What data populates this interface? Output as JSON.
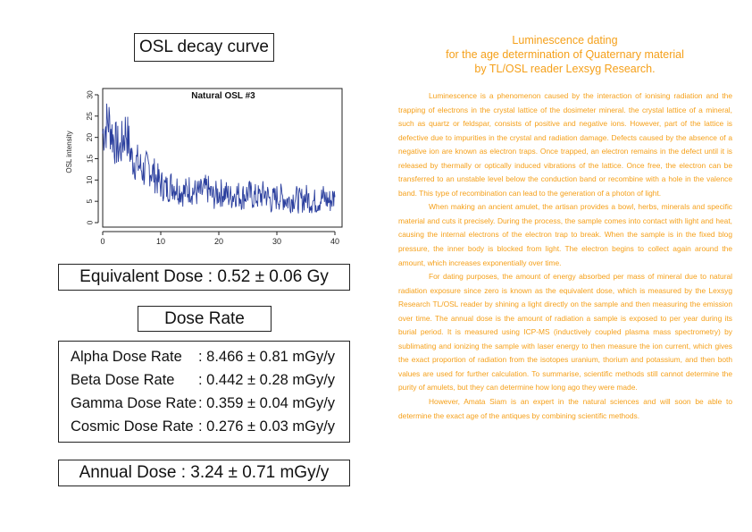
{
  "left": {
    "chart_title_box": "OSL decay curve",
    "equivalent_dose": "Equivalent Dose : 0.52 ± 0.06 Gy",
    "dose_rate_title": "Dose Rate",
    "dose_rates": [
      {
        "label": "Alpha Dose Rate",
        "value": ": 8.466 ± 0.81 mGy/y"
      },
      {
        "label": "Beta Dose Rate",
        "value": ": 0.442 ± 0.28 mGy/y"
      },
      {
        "label": "Gamma Dose Rate",
        "value": ": 0.359 ± 0.04 mGy/y"
      },
      {
        "label": "Cosmic Dose Rate",
        "value": ": 0.276 ± 0.03 mGy/y"
      }
    ],
    "annual_dose": "Annual Dose : 3.24 ± 0.71 mGy/y"
  },
  "right": {
    "heading_lines": [
      "Luminescence dating",
      "for the age determination of Quaternary material",
      "by TL/OSL reader Lexsyg Research."
    ],
    "paragraphs": [
      "Luminescence is a phenomenon caused by the interaction of ionising radiation and the trapping of electrons in the crystal lattice of the dosimeter mineral. the crystal lattice of a mineral, such as quartz or feldspar, consists of positive and negative ions. However, part of the lattice is defective due to impurities in the crystal and radiation damage. Defects caused by the absence of a negative ion are known as electron traps. Once trapped, an electron remains in the defect until it is released by thermally or optically induced vibrations of the lattice. Once free, the electron can be transferred to an unstable level below the conduction band or recombine with a hole in the valence band. This type of recombination can lead to the generation of a photon of light.",
      "When making an ancient amulet, the artisan provides a bowl, herbs, minerals and specific material and cuts it precisely. During the process, the sample comes into contact with light and heat, causing the internal electrons of the electron trap to break. When the sample is in the fixed blog pressure, the inner body is blocked from light. The electron begins to collect again around the amount, which increases exponentially over time.",
      "For dating purposes, the amount of energy absorbed per mass of mineral due to natural radiation exposure since zero is known as the equivalent dose, which is measured by the Lexsyg Research TL/OSL reader by shining a light directly on the sample and then measuring the emission over time. The annual dose is the amount of radiation a sample is exposed to per year during its burial period. It is measured using ICP-MS (inductively coupled plasma mass spectrometry) by sublimating and ionizing the sample with laser energy to then measure the ion current, which gives the exact proportion of radiation from the isotopes uranium, thorium and potassium, and then both values are used for further calculation. To summarise, scientific methods still cannot determine the purity of amulets, but they can determine how long ago they were made.",
      "However, Amata Siam is an expert in the natural sciences and will soon be able to determine the exact age of the antiques by combining scientific methods."
    ],
    "text_color": "#f5a01a"
  },
  "chart_data": {
    "type": "line",
    "title": "Natural OSL #3",
    "xlabel": "",
    "ylabel": "OSL intensity",
    "xlim": [
      0,
      40
    ],
    "ylim": [
      0,
      30
    ],
    "xticks": [
      0,
      10,
      20,
      30,
      40
    ],
    "yticks": [
      0,
      5,
      10,
      15,
      20,
      25,
      30
    ],
    "grid": false,
    "series_color": "#2b3f9e",
    "series": [
      {
        "x": [
          0,
          1,
          2,
          3,
          4,
          5,
          6,
          7,
          8,
          9,
          10,
          11,
          12,
          13,
          14,
          15,
          16,
          17,
          18,
          19,
          20,
          21,
          22,
          23,
          24,
          25,
          26,
          27,
          28,
          29,
          30,
          31,
          32,
          33,
          34,
          35,
          36,
          37,
          38,
          39,
          40
        ],
        "values": [
          21,
          24,
          19,
          17,
          22,
          15,
          14,
          12,
          13,
          11,
          9,
          8,
          9,
          8,
          7,
          8,
          7,
          7,
          8,
          6,
          7,
          7,
          6,
          7,
          6,
          7,
          6,
          6,
          7,
          5,
          6,
          6,
          5,
          6,
          5,
          6,
          5,
          5,
          6,
          5,
          6
        ]
      }
    ]
  }
}
